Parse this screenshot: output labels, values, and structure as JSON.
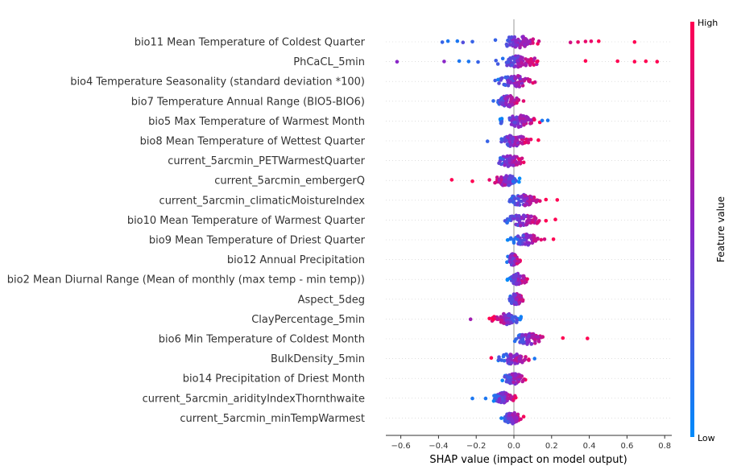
{
  "chart_data": {
    "type": "scatter",
    "subtype": "shap-beeswarm",
    "title": "",
    "xlabel": "SHAP value (impact on model output)",
    "xlim": [
      -0.7,
      0.84
    ],
    "xticks": [
      -0.6,
      -0.4,
      -0.2,
      0.0,
      0.2,
      0.4,
      0.6,
      0.8
    ],
    "xtick_labels": [
      "−0.6",
      "−0.4",
      "−0.2",
      "0.0",
      "0.2",
      "0.4",
      "0.6",
      "0.8"
    ],
    "colorbar": {
      "title": "Feature value",
      "high_label": "High",
      "low_label": "Low",
      "high_color": "#ff0052",
      "mid_color": "#8a26c8",
      "low_color": "#008bfb"
    },
    "features": [
      {
        "name": "bio11 Mean Temperature of Coldest Quarter",
        "min": -0.38,
        "max": 0.64,
        "outliers": [
          [
            -0.38,
            0.2
          ],
          [
            -0.35,
            0.1
          ],
          [
            -0.3,
            0.1
          ],
          [
            -0.27,
            0.3
          ],
          [
            -0.22,
            0.2
          ],
          [
            0.3,
            0.8
          ],
          [
            0.34,
            0.9
          ],
          [
            0.38,
            0.9
          ],
          [
            0.41,
            0.9
          ],
          [
            0.45,
            1.0
          ],
          [
            0.64,
            1.0
          ]
        ]
      },
      {
        "name": "PhCaCL_5min",
        "min": -0.62,
        "max": 0.76,
        "outliers": [
          [
            -0.62,
            0.5
          ],
          [
            -0.37,
            0.5
          ],
          [
            -0.29,
            0.1
          ],
          [
            -0.24,
            0.1
          ],
          [
            -0.19,
            0.2
          ],
          [
            0.38,
            1.0
          ],
          [
            0.55,
            1.0
          ],
          [
            0.64,
            1.0
          ],
          [
            0.7,
            1.0
          ],
          [
            0.76,
            1.0
          ]
        ]
      },
      {
        "name": "bio4 Temperature Seasonality (standard deviation *100)",
        "min": -0.15,
        "max": 0.17,
        "outliers": []
      },
      {
        "name": "bio7 Temperature Annual Range (BIO5-BIO6)",
        "min": -0.14,
        "max": 0.07,
        "outliers": []
      },
      {
        "name": "bio5 Max Temperature of Warmest Month",
        "min": -0.12,
        "max": 0.18,
        "outliers": [
          [
            0.15,
            0.1
          ],
          [
            0.18,
            0.1
          ]
        ]
      },
      {
        "name": "bio8 Mean Temperature of Wettest Quarter",
        "min": -0.14,
        "max": 0.13,
        "outliers": [
          [
            -0.14,
            0.2
          ],
          [
            0.13,
            1.0
          ]
        ]
      },
      {
        "name": "current_5arcmin_PETWarmestQuarter",
        "min": -0.14,
        "max": 0.09,
        "outliers": []
      },
      {
        "name": "current_5arcmin_embergerQ",
        "min": -0.33,
        "max": 0.05,
        "outliers": [
          [
            -0.33,
            1.0
          ],
          [
            -0.22,
            1.0
          ],
          [
            -0.13,
            0.9
          ]
        ]
      },
      {
        "name": "current_5arcmin_climaticMoistureIndex",
        "min": -0.09,
        "max": 0.23,
        "outliers": [
          [
            0.17,
            1.0
          ],
          [
            0.23,
            1.0
          ]
        ]
      },
      {
        "name": "bio10 Mean Temperature of Warmest Quarter",
        "min": -0.1,
        "max": 0.22,
        "outliers": [
          [
            0.17,
            1.0
          ],
          [
            0.22,
            1.0
          ]
        ]
      },
      {
        "name": "bio9 Mean Temperature of Driest Quarter",
        "min": -0.05,
        "max": 0.21,
        "outliers": [
          [
            0.21,
            1.0
          ]
        ]
      },
      {
        "name": "bio12 Annual Precipitation",
        "min": -0.06,
        "max": 0.05,
        "outliers": []
      },
      {
        "name": "bio2 Mean Diurnal Range (Mean of monthly (max temp - min temp))",
        "min": -0.05,
        "max": 0.1,
        "outliers": []
      },
      {
        "name": "Aspect_5deg",
        "min": -0.05,
        "max": 0.07,
        "outliers": []
      },
      {
        "name": "ClayPercentage_5min",
        "min": -0.23,
        "max": 0.07,
        "outliers": [
          [
            -0.23,
            0.6
          ],
          [
            -0.13,
            1.0
          ],
          [
            -0.11,
            1.0
          ]
        ]
      },
      {
        "name": "bio6 Min Temperature of Coldest Month",
        "min": -0.03,
        "max": 0.39,
        "outliers": [
          [
            0.26,
            1.0
          ],
          [
            0.39,
            1.0
          ]
        ]
      },
      {
        "name": "BulkDensity_5min",
        "min": -0.12,
        "max": 0.11,
        "outliers": [
          [
            -0.12,
            1.0
          ],
          [
            0.11,
            0.1
          ]
        ]
      },
      {
        "name": "bio14 Precipitation of Driest Month",
        "min": -0.09,
        "max": 0.09,
        "outliers": []
      },
      {
        "name": "current_5arcmin_aridityIndexThornthwaite",
        "min": -0.22,
        "max": 0.03,
        "outliers": [
          [
            -0.22,
            0.1
          ],
          [
            -0.15,
            0.1
          ]
        ]
      },
      {
        "name": "current_5arcmin_minTempWarmest",
        "min": -0.09,
        "max": 0.07,
        "outliers": []
      }
    ]
  }
}
